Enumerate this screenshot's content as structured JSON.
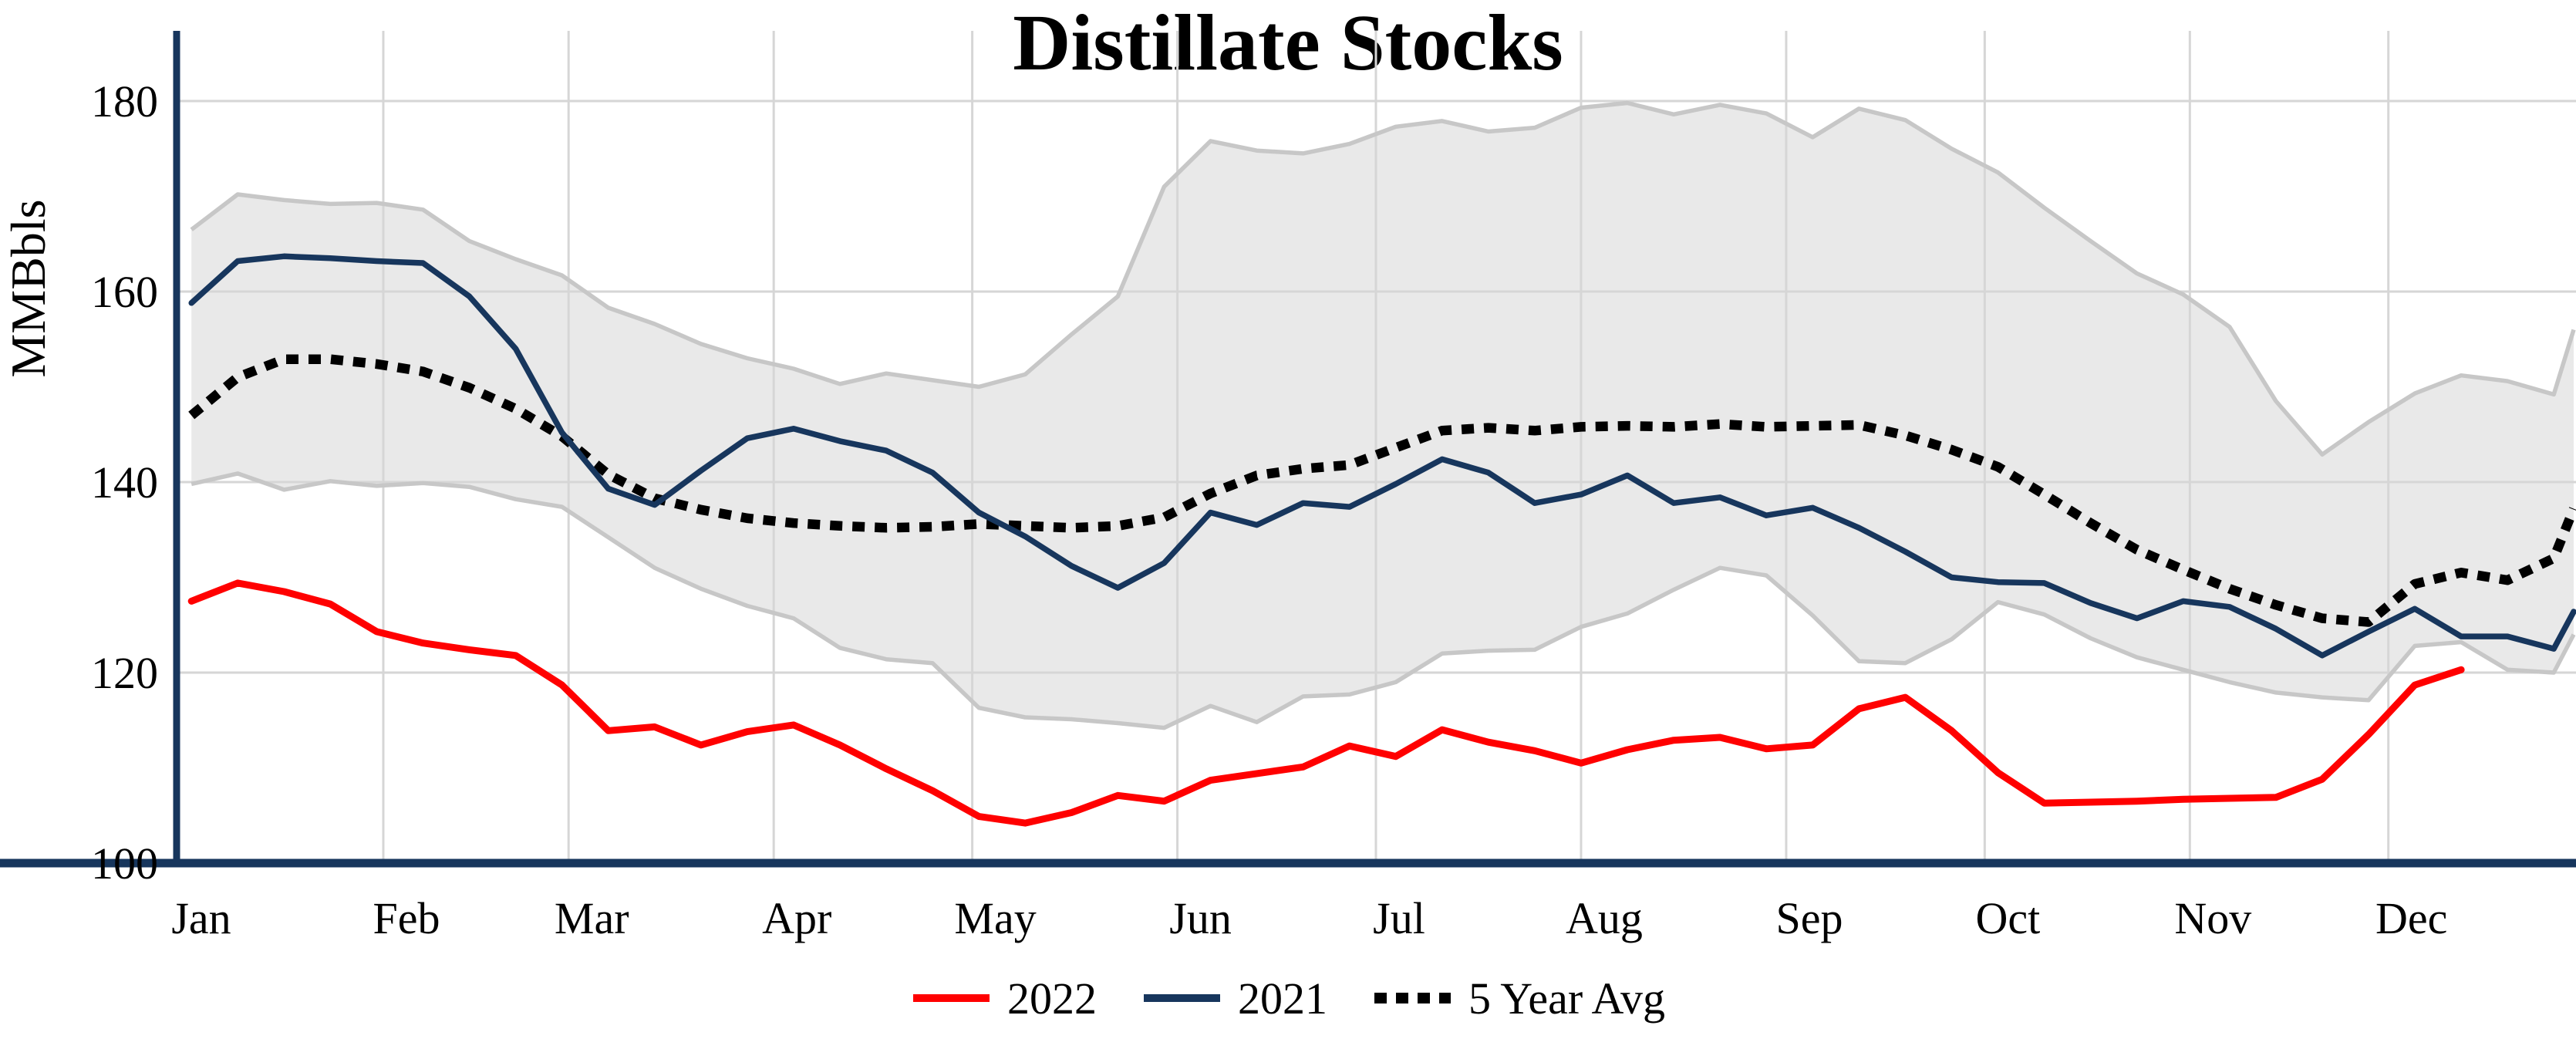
{
  "chart_data": {
    "type": "line",
    "title": "Distillate Stocks",
    "ylabel": "MMBbls",
    "xlabel": "",
    "ylim": [
      100,
      187
    ],
    "yticks": [
      100,
      120,
      140,
      160,
      180
    ],
    "grid": true,
    "legend_position": "bottom-center",
    "colors": {
      "red_2022": "#FF0000",
      "navy_2021": "#17365D",
      "avg_dotted": "#000000",
      "band_fill": "#E9E9E9",
      "band_edge": "#C7C7C7",
      "grid": "#D6D6D6",
      "axis": "#17365D"
    },
    "month_labels": [
      "Jan",
      "Feb",
      "Mar",
      "Apr",
      "May",
      "Jun",
      "Jul",
      "Aug",
      "Sep",
      "Oct",
      "Nov",
      "Dec"
    ],
    "month_start_days": [
      0,
      31,
      59,
      90,
      120,
      151,
      181,
      212,
      243,
      273,
      304,
      334
    ],
    "x_unit": "day-of-year-weekly",
    "week_days": [
      2,
      9,
      16,
      23,
      30,
      37,
      44,
      51,
      58,
      65,
      72,
      79,
      86,
      93,
      100,
      107,
      114,
      121,
      128,
      135,
      142,
      149,
      156,
      163,
      170,
      177,
      184,
      191,
      198,
      205,
      212,
      219,
      226,
      233,
      240,
      247,
      254,
      261,
      268,
      275,
      282,
      289,
      296,
      303,
      310,
      317,
      324,
      331,
      338,
      345,
      352,
      359,
      362
    ],
    "series": [
      {
        "name": "2022",
        "style": "solid",
        "color": "#FF0000",
        "width": 9,
        "values": [
          127.5,
          129.4,
          128.5,
          127.2,
          124.3,
          123.1,
          122.4,
          121.8,
          118.7,
          113.9,
          114.3,
          112.4,
          113.8,
          114.5,
          112.4,
          109.9,
          107.6,
          104.9,
          104.2,
          105.3,
          107.1,
          106.5,
          108.7,
          109.4,
          110.1,
          112.3,
          111.2,
          114.0,
          112.7,
          111.8,
          110.5,
          111.9,
          112.9,
          113.2,
          112.0,
          112.4,
          116.2,
          117.4,
          113.9,
          109.5,
          106.3,
          106.4,
          106.5,
          106.7,
          106.8,
          106.9,
          108.8,
          113.5,
          118.7,
          120.3,
          null,
          null,
          null
        ]
      },
      {
        "name": "2021",
        "style": "solid",
        "color": "#17365D",
        "width": 7.5,
        "values": [
          158.8,
          163.2,
          163.7,
          163.5,
          163.2,
          163.0,
          159.5,
          154.0,
          145.2,
          139.3,
          137.6,
          141.2,
          144.6,
          145.6,
          144.3,
          143.3,
          141.0,
          136.8,
          134.3,
          131.2,
          128.9,
          131.5,
          136.8,
          135.5,
          137.8,
          137.4,
          139.8,
          142.4,
          141.0,
          137.8,
          138.7,
          140.7,
          137.8,
          138.4,
          136.5,
          137.3,
          135.2,
          132.7,
          130.0,
          129.5,
          129.4,
          127.3,
          125.7,
          127.5,
          126.9,
          124.6,
          121.8,
          124.3,
          126.7,
          123.8,
          123.8,
          122.5,
          126.4
        ]
      },
      {
        "name": "5 Year Avg",
        "style": "dotted",
        "color": "#000000",
        "width": 12.5,
        "values": [
          147.0,
          151.0,
          152.9,
          152.9,
          152.4,
          151.6,
          149.9,
          147.7,
          144.8,
          140.8,
          138.3,
          137.1,
          136.2,
          135.7,
          135.4,
          135.2,
          135.3,
          135.6,
          135.4,
          135.2,
          135.4,
          136.3,
          138.8,
          140.7,
          141.4,
          141.8,
          143.6,
          145.4,
          145.7,
          145.4,
          145.8,
          145.9,
          145.8,
          146.1,
          145.8,
          145.9,
          146.0,
          144.9,
          143.4,
          141.6,
          138.7,
          135.7,
          132.9,
          130.8,
          128.8,
          127.1,
          125.7,
          125.3,
          129.3,
          130.5,
          129.7,
          132.0,
          137.2
        ]
      }
    ],
    "band": {
      "name": "5-year min-max range",
      "top": [
        166.5,
        170.2,
        169.6,
        169.2,
        169.3,
        168.6,
        165.3,
        163.4,
        161.7,
        158.3,
        156.6,
        154.5,
        153.0,
        151.9,
        150.3,
        151.4,
        150.7,
        150.0,
        151.3,
        155.5,
        159.5,
        171.0,
        175.8,
        174.8,
        174.5,
        175.5,
        177.3,
        177.9,
        176.8,
        177.2,
        179.3,
        179.8,
        178.6,
        179.6,
        178.7,
        176.2,
        179.2,
        178.0,
        175.0,
        172.5,
        168.8,
        165.3,
        161.9,
        159.7,
        156.3,
        148.5,
        142.9,
        146.3,
        149.3,
        151.2,
        150.6,
        149.2,
        156.0
      ],
      "bottom": [
        139.8,
        140.9,
        139.2,
        140.1,
        139.6,
        139.9,
        139.5,
        138.2,
        137.4,
        134.2,
        131.0,
        128.8,
        127.0,
        125.7,
        122.6,
        121.4,
        121.0,
        116.3,
        115.3,
        115.1,
        114.7,
        114.2,
        116.5,
        114.8,
        117.5,
        117.7,
        119.0,
        122.0,
        122.3,
        122.4,
        124.8,
        126.2,
        128.7,
        131.0,
        130.2,
        126.0,
        121.2,
        121.0,
        123.5,
        127.4,
        126.1,
        123.6,
        121.6,
        120.3,
        119.0,
        117.9,
        117.4,
        117.1,
        122.8,
        123.2,
        120.3,
        120.0,
        124.0
      ]
    },
    "legend": [
      {
        "label": "2022",
        "color": "#FF0000",
        "style": "solid"
      },
      {
        "label": "2021",
        "color": "#17365D",
        "style": "solid"
      },
      {
        "label": "5 Year Avg",
        "color": "#000000",
        "style": "dotted"
      }
    ]
  }
}
